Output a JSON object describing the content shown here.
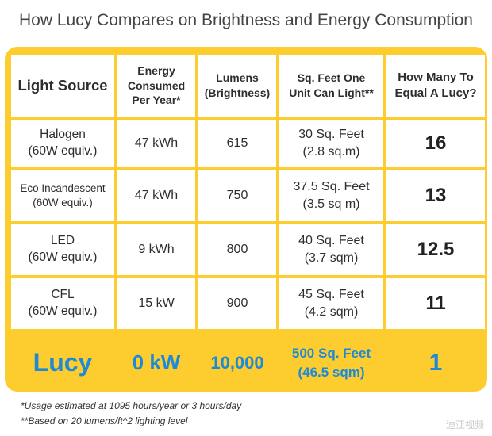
{
  "title": "How Lucy Compares on Brightness and Energy Consumption",
  "headers": {
    "source": "Light Source",
    "energy": [
      "Energy",
      "Consumed",
      "Per Year*"
    ],
    "lumens": [
      "Lumens",
      "(Brightness)"
    ],
    "sqft": [
      "Sq. Feet One",
      "Unit Can Light**"
    ],
    "equal": [
      "How Many To",
      "Equal A Lucy?"
    ]
  },
  "rows": [
    {
      "source": [
        "Halogen",
        "(60W equiv.)"
      ],
      "energy": "47 kWh",
      "lumens": "615",
      "sqft": [
        "30 Sq. Feet",
        "(2.8 sq.m)"
      ],
      "equal": "16"
    },
    {
      "source": [
        "Eco Incandescent",
        "(60W equiv.)"
      ],
      "energy": "47 kWh",
      "lumens": "750",
      "sqft": [
        "37.5 Sq. Feet",
        "(3.5 sq m)"
      ],
      "equal": "13"
    },
    {
      "source": [
        "LED",
        "(60W equiv.)"
      ],
      "energy": "9 kWh",
      "lumens": "800",
      "sqft": [
        "40 Sq. Feet",
        "(3.7 sqm)"
      ],
      "equal": "12.5"
    },
    {
      "source": [
        "CFL",
        "(60W equiv.)"
      ],
      "energy": "15 kW",
      "lumens": "900",
      "sqft": [
        "45 Sq. Feet",
        "(4.2 sqm)"
      ],
      "equal": "11"
    }
  ],
  "lucy": {
    "source": "Lucy",
    "energy": "0 kW",
    "lumens": "10,000",
    "sqft": [
      "500 Sq. Feet",
      "(46.5 sqm)"
    ],
    "equal": "1"
  },
  "notes": [
    "*Usage estimated at 1095 hours/year or 3 hours/day",
    "**Based on 20 lumens/ft^2 lighting level"
  ],
  "watermark": "迪亚视频",
  "colors": {
    "frame": "#fdcc2e",
    "lucy_text": "#1e8ad6"
  }
}
